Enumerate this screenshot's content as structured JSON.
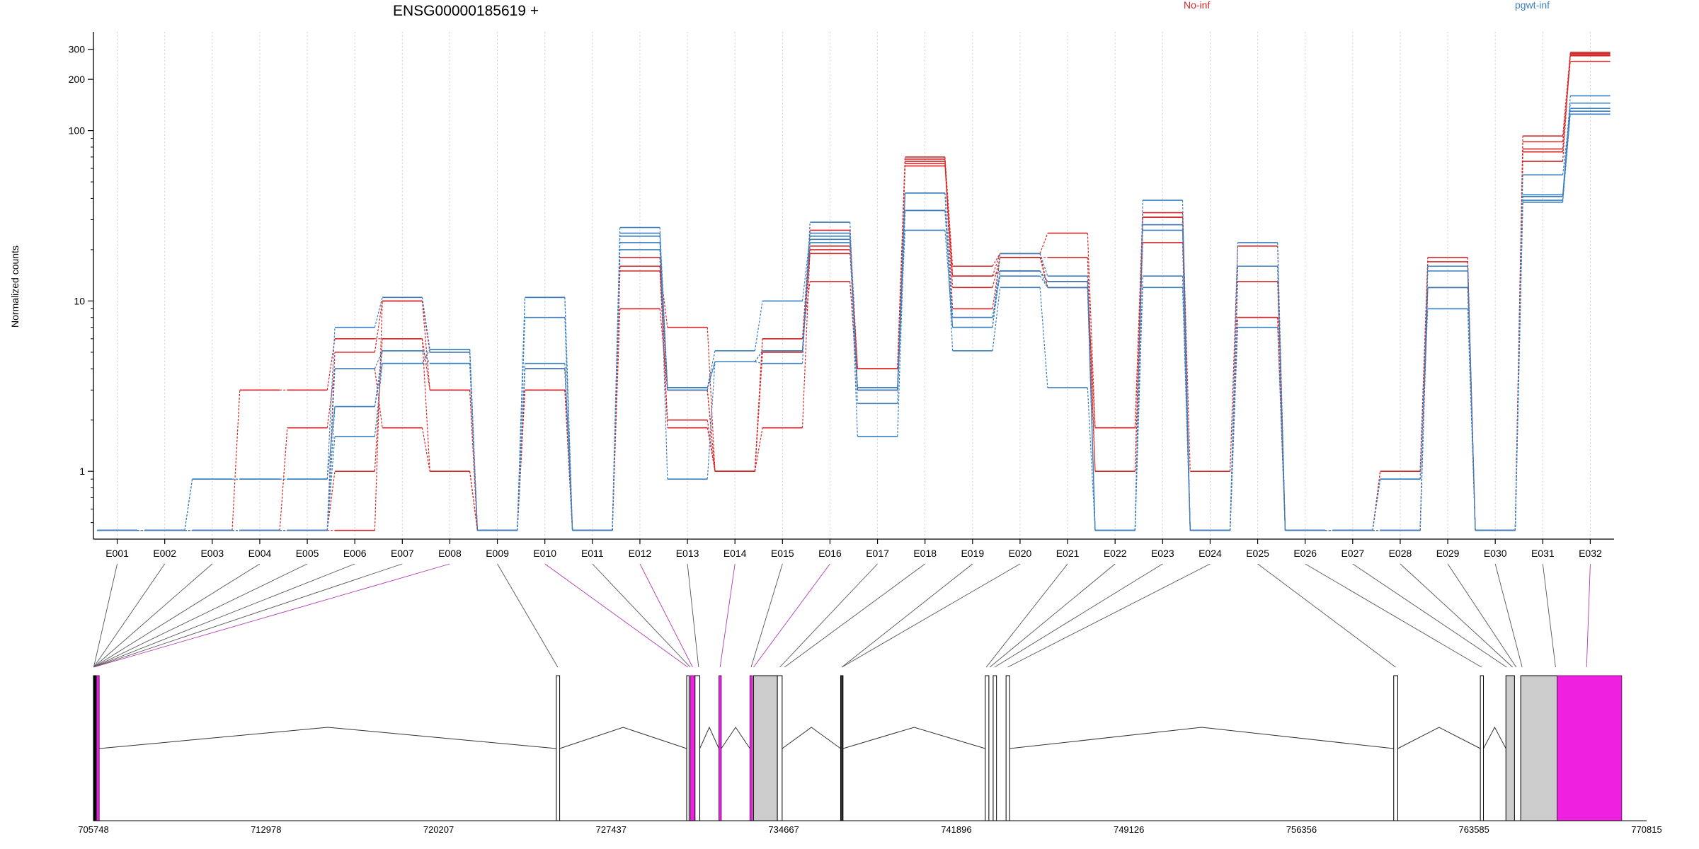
{
  "chart_data": {
    "type": "line",
    "title": "ENSG00000185619 +",
    "ylabel": "Normalized counts",
    "yscale": "log",
    "ylim": [
      0.4,
      380
    ],
    "yticks": [
      1,
      10,
      100,
      200,
      300
    ],
    "grid": "vertical dotted",
    "legend": [
      {
        "name": "No-inf",
        "color": "#d62728"
      },
      {
        "name": "pgwt-inf",
        "color": "#3a7fc0"
      }
    ],
    "categories": [
      "E001",
      "E002",
      "E003",
      "E004",
      "E005",
      "E006",
      "E007",
      "E008",
      "E009",
      "E010",
      "E011",
      "E012",
      "E013",
      "E014",
      "E015",
      "E016",
      "E017",
      "E018",
      "E019",
      "E020",
      "E021",
      "E022",
      "E023",
      "E024",
      "E025",
      "E026",
      "E027",
      "E028",
      "E029",
      "E030",
      "E031",
      "E032"
    ],
    "series": [
      {
        "group": "No-inf",
        "color": "#d62728",
        "values": [
          0.45,
          0.45,
          0.45,
          3,
          3,
          6,
          6,
          3,
          0.45,
          4,
          0.45,
          16,
          7,
          1,
          6,
          26,
          4,
          70,
          16,
          19,
          25,
          1.8,
          33,
          1,
          21,
          0.45,
          0.45,
          1,
          18,
          0.45,
          93,
          288
        ]
      },
      {
        "group": "No-inf",
        "color": "#d62728",
        "values": [
          0.45,
          0.45,
          0.45,
          0.45,
          1.8,
          4,
          1.8,
          1,
          0.45,
          3,
          0.45,
          15,
          2,
          1,
          5,
          21,
          3,
          66,
          9,
          18,
          18,
          1,
          22,
          0.45,
          13,
          0.45,
          0.45,
          1,
          17,
          0.45,
          78,
          279
        ]
      },
      {
        "group": "No-inf",
        "color": "#d62728",
        "values": [
          0.45,
          0.45,
          0.45,
          0.45,
          0.45,
          1,
          6,
          1,
          0.45,
          3,
          0.45,
          9,
          3,
          1,
          5,
          19,
          4,
          62,
          14,
          15,
          13,
          0.45,
          31,
          0.45,
          8,
          0.45,
          0.45,
          0.45,
          12,
          0.45,
          86,
          255
        ]
      },
      {
        "group": "No-inf",
        "color": "#d62728",
        "values": [
          0.45,
          0.45,
          0.45,
          0.45,
          0.45,
          5,
          10,
          3,
          0.45,
          4,
          0.45,
          18,
          1.8,
          1,
          1.8,
          20,
          4,
          68,
          12,
          18,
          12,
          1.8,
          28,
          0.45,
          16,
          0.45,
          0.45,
          0.45,
          16,
          0.45,
          66,
          284
        ]
      },
      {
        "group": "No-inf",
        "color": "#d62728",
        "values": [
          0.45,
          0.45,
          0.45,
          0.45,
          0.45,
          0.45,
          10,
          5,
          0.45,
          4,
          0.45,
          16,
          3,
          1,
          6,
          13,
          3,
          64,
          14,
          19,
          12,
          1,
          31,
          0.45,
          8,
          0.45,
          0.45,
          0.45,
          12,
          0.45,
          75,
          275
        ]
      },
      {
        "group": "pgwt-inf",
        "color": "#3a7fc0",
        "values": [
          0.45,
          0.45,
          0.9,
          0.9,
          0.9,
          2.4,
          4.3,
          4.3,
          0.45,
          10.5,
          0.45,
          27,
          3.1,
          4.4,
          4.3,
          29,
          2.5,
          43,
          5.1,
          12,
          3.1,
          0.45,
          39,
          0.45,
          7,
          0.45,
          0.45,
          0.9,
          9,
          0.45,
          39,
          130
        ]
      },
      {
        "group": "pgwt-inf",
        "color": "#3a7fc0",
        "values": [
          0.45,
          0.45,
          0.9,
          0.9,
          0.9,
          7,
          10.5,
          5.2,
          0.45,
          8,
          0.45,
          22,
          3.1,
          5.1,
          10,
          24,
          1.6,
          34,
          7,
          15,
          13,
          0.45,
          26,
          0.45,
          16,
          0.45,
          0.45,
          0.9,
          12,
          0.45,
          41,
          160
        ]
      },
      {
        "group": "pgwt-inf",
        "color": "#3a7fc0",
        "values": [
          0.45,
          0.45,
          0.45,
          0.45,
          0.45,
          1.6,
          4.3,
          5.2,
          0.45,
          10.5,
          0.45,
          25,
          0.9,
          4.4,
          5.1,
          23,
          3.1,
          26,
          7,
          19,
          14,
          0.45,
          14,
          0.45,
          22,
          0.45,
          0.45,
          0.45,
          15,
          0.45,
          55,
          135
        ]
      },
      {
        "group": "pgwt-inf",
        "color": "#3a7fc0",
        "values": [
          0.45,
          0.45,
          0.45,
          0.45,
          0.45,
          2.4,
          5.1,
          4.3,
          0.45,
          4.3,
          0.45,
          20,
          3.1,
          4.4,
          5.1,
          22,
          3.1,
          43,
          8,
          14,
          12,
          0.45,
          28,
          0.45,
          16,
          0.45,
          0.45,
          0.45,
          16,
          0.45,
          42,
          145
        ]
      },
      {
        "group": "pgwt-inf",
        "color": "#3a7fc0",
        "values": [
          0.45,
          0.45,
          0.45,
          0.45,
          0.45,
          4,
          5.1,
          5,
          0.45,
          4,
          0.45,
          24,
          3,
          4.4,
          5.1,
          25,
          3,
          34,
          8,
          15,
          12,
          0.45,
          12,
          0.45,
          16,
          0.45,
          0.45,
          0.45,
          16,
          0.45,
          38,
          125
        ]
      }
    ]
  },
  "gene_model": {
    "genomic_ticks": [
      "705748",
      "712978",
      "720207",
      "727437",
      "734667",
      "741896",
      "749126",
      "756356",
      "763585",
      "770815"
    ],
    "range": [
      705748,
      770815
    ]
  }
}
